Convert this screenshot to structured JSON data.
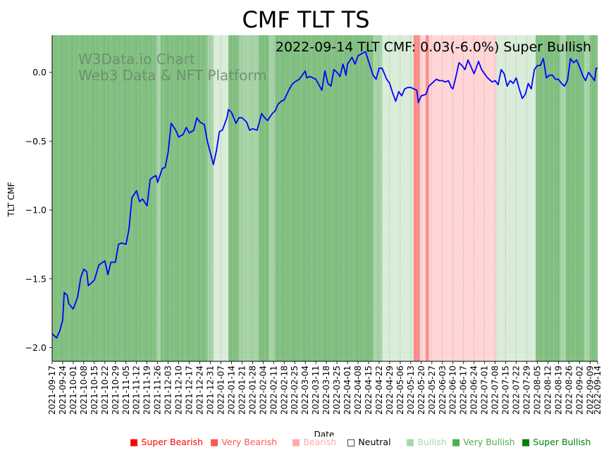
{
  "chart_data": {
    "type": "line",
    "title": "CMF TLT TS",
    "annotation": "2022-09-14 TLT CMF: 0.03(-6.0%) Super Bullish",
    "watermark": [
      "W3Data.io Chart",
      "Web3 Data & NFT Platform"
    ],
    "xlabel": "Date",
    "ylabel": "TLT CMF",
    "ylim": [
      -2.1,
      0.27
    ],
    "yticks": [
      0.0,
      -0.5,
      -1.0,
      -1.5,
      -2.0
    ],
    "ytick_labels": [
      "0.0",
      "−0.5",
      "−1.0",
      "−1.5",
      "−2.0"
    ],
    "x_start": "2021-09-17",
    "x_end": "2022-09-14",
    "xtick_labels": [
      "2021-09-17",
      "2021-09-24",
      "2021-10-01",
      "2021-10-08",
      "2021-10-15",
      "2021-10-22",
      "2021-10-29",
      "2021-11-05",
      "2021-11-12",
      "2021-11-19",
      "2021-11-26",
      "2021-12-03",
      "2021-12-10",
      "2021-12-17",
      "2021-12-24",
      "2021-12-31",
      "2022-01-07",
      "2022-01-14",
      "2022-01-21",
      "2022-01-28",
      "2022-02-04",
      "2022-02-11",
      "2022-02-18",
      "2022-02-25",
      "2022-03-04",
      "2022-03-11",
      "2022-03-18",
      "2022-03-25",
      "2022-04-01",
      "2022-04-08",
      "2022-04-15",
      "2022-04-22",
      "2022-04-29",
      "2022-05-06",
      "2022-05-13",
      "2022-05-20",
      "2022-05-27",
      "2022-06-03",
      "2022-06-10",
      "2022-06-17",
      "2022-06-24",
      "2022-07-01",
      "2022-07-08",
      "2022-07-15",
      "2022-07-22",
      "2022-07-29",
      "2022-08-05",
      "2022-08-12",
      "2022-08-19",
      "2022-08-26",
      "2022-09-02",
      "2022-09-09",
      "2022-09-14"
    ],
    "line_color": "#0000ff",
    "series": [
      {
        "name": "TLT CMF",
        "points": [
          [
            "2021-09-17",
            -1.9
          ],
          [
            "2021-09-20",
            -1.93
          ],
          [
            "2021-09-22",
            -1.88
          ],
          [
            "2021-09-24",
            -1.8
          ],
          [
            "2021-09-25",
            -1.6
          ],
          [
            "2021-09-27",
            -1.62
          ],
          [
            "2021-09-28",
            -1.68
          ],
          [
            "2021-10-01",
            -1.72
          ],
          [
            "2021-10-04",
            -1.63
          ],
          [
            "2021-10-06",
            -1.49
          ],
          [
            "2021-10-08",
            -1.43
          ],
          [
            "2021-10-10",
            -1.45
          ],
          [
            "2021-10-11",
            -1.55
          ],
          [
            "2021-10-15",
            -1.51
          ],
          [
            "2021-10-18",
            -1.4
          ],
          [
            "2021-10-22",
            -1.37
          ],
          [
            "2021-10-24",
            -1.47
          ],
          [
            "2021-10-26",
            -1.38
          ],
          [
            "2021-10-29",
            -1.38
          ],
          [
            "2021-10-31",
            -1.25
          ],
          [
            "2021-11-02",
            -1.24
          ],
          [
            "2021-11-05",
            -1.25
          ],
          [
            "2021-11-07",
            -1.14
          ],
          [
            "2021-11-09",
            -0.91
          ],
          [
            "2021-11-12",
            -0.86
          ],
          [
            "2021-11-14",
            -0.94
          ],
          [
            "2021-11-16",
            -0.92
          ],
          [
            "2021-11-19",
            -0.97
          ],
          [
            "2021-11-21",
            -0.78
          ],
          [
            "2021-11-23",
            -0.76
          ],
          [
            "2021-11-25",
            -0.75
          ],
          [
            "2021-11-26",
            -0.8
          ],
          [
            "2021-11-29",
            -0.7
          ],
          [
            "2021-12-01",
            -0.69
          ],
          [
            "2021-12-03",
            -0.58
          ],
          [
            "2021-12-05",
            -0.37
          ],
          [
            "2021-12-08",
            -0.42
          ],
          [
            "2021-12-10",
            -0.47
          ],
          [
            "2021-12-13",
            -0.45
          ],
          [
            "2021-12-15",
            -0.4
          ],
          [
            "2021-12-17",
            -0.44
          ],
          [
            "2021-12-20",
            -0.42
          ],
          [
            "2021-12-22",
            -0.33
          ],
          [
            "2021-12-24",
            -0.36
          ],
          [
            "2021-12-27",
            -0.38
          ],
          [
            "2021-12-29",
            -0.5
          ],
          [
            "2022-01-02",
            -0.67
          ],
          [
            "2022-01-04",
            -0.57
          ],
          [
            "2022-01-06",
            -0.43
          ],
          [
            "2022-01-08",
            -0.42
          ],
          [
            "2022-01-11",
            -0.33
          ],
          [
            "2022-01-12",
            -0.27
          ],
          [
            "2022-01-14",
            -0.29
          ],
          [
            "2022-01-17",
            -0.37
          ],
          [
            "2022-01-19",
            -0.33
          ],
          [
            "2022-01-21",
            -0.33
          ],
          [
            "2022-01-24",
            -0.36
          ],
          [
            "2022-01-26",
            -0.42
          ],
          [
            "2022-01-28",
            -0.41
          ],
          [
            "2022-01-31",
            -0.42
          ],
          [
            "2022-02-02",
            -0.34
          ],
          [
            "2022-02-03",
            -0.3
          ],
          [
            "2022-02-05",
            -0.33
          ],
          [
            "2022-02-07",
            -0.35
          ],
          [
            "2022-02-10",
            -0.3
          ],
          [
            "2022-02-12",
            -0.28
          ],
          [
            "2022-02-14",
            -0.23
          ],
          [
            "2022-02-16",
            -0.21
          ],
          [
            "2022-02-18",
            -0.2
          ],
          [
            "2022-02-21",
            -0.13
          ],
          [
            "2022-02-23",
            -0.09
          ],
          [
            "2022-02-25",
            -0.07
          ],
          [
            "2022-02-28",
            -0.05
          ],
          [
            "2022-03-02",
            -0.02
          ],
          [
            "2022-03-04",
            0.01
          ],
          [
            "2022-03-05",
            -0.04
          ],
          [
            "2022-03-07",
            -0.03
          ],
          [
            "2022-03-09",
            -0.04
          ],
          [
            "2022-03-11",
            -0.05
          ],
          [
            "2022-03-14",
            -0.11
          ],
          [
            "2022-03-15",
            -0.13
          ],
          [
            "2022-03-17",
            0.01
          ],
          [
            "2022-03-19",
            -0.08
          ],
          [
            "2022-03-21",
            -0.1
          ],
          [
            "2022-03-23",
            0.02
          ],
          [
            "2022-03-25",
            0.0
          ],
          [
            "2022-03-27",
            -0.03
          ],
          [
            "2022-03-29",
            0.06
          ],
          [
            "2022-03-31",
            -0.02
          ],
          [
            "2022-04-01",
            0.06
          ],
          [
            "2022-04-04",
            0.11
          ],
          [
            "2022-04-06",
            0.06
          ],
          [
            "2022-04-08",
            0.12
          ],
          [
            "2022-04-11",
            0.14
          ],
          [
            "2022-04-13",
            0.15
          ],
          [
            "2022-04-15",
            0.08
          ],
          [
            "2022-04-18",
            -0.02
          ],
          [
            "2022-04-20",
            -0.05
          ],
          [
            "2022-04-22",
            0.03
          ],
          [
            "2022-04-24",
            0.03
          ],
          [
            "2022-04-27",
            -0.05
          ],
          [
            "2022-04-29",
            -0.08
          ],
          [
            "2022-05-01",
            -0.15
          ],
          [
            "2022-05-03",
            -0.21
          ],
          [
            "2022-05-05",
            -0.14
          ],
          [
            "2022-05-07",
            -0.17
          ],
          [
            "2022-05-09",
            -0.12
          ],
          [
            "2022-05-11",
            -0.11
          ],
          [
            "2022-05-13",
            -0.11
          ],
          [
            "2022-05-15",
            -0.12
          ],
          [
            "2022-05-17",
            -0.13
          ],
          [
            "2022-05-18",
            -0.22
          ],
          [
            "2022-05-20",
            -0.17
          ],
          [
            "2022-05-23",
            -0.16
          ],
          [
            "2022-05-25",
            -0.1
          ],
          [
            "2022-05-27",
            -0.08
          ],
          [
            "2022-05-30",
            -0.05
          ],
          [
            "2022-06-01",
            -0.06
          ],
          [
            "2022-06-03",
            -0.06
          ],
          [
            "2022-06-05",
            -0.07
          ],
          [
            "2022-06-07",
            -0.06
          ],
          [
            "2022-06-09",
            -0.11
          ],
          [
            "2022-06-10",
            -0.12
          ],
          [
            "2022-06-12",
            -0.03
          ],
          [
            "2022-06-14",
            0.07
          ],
          [
            "2022-06-16",
            0.05
          ],
          [
            "2022-06-18",
            0.02
          ],
          [
            "2022-06-20",
            0.09
          ],
          [
            "2022-06-22",
            0.04
          ],
          [
            "2022-06-24",
            -0.01
          ],
          [
            "2022-06-27",
            0.08
          ],
          [
            "2022-06-29",
            0.02
          ],
          [
            "2022-07-01",
            -0.01
          ],
          [
            "2022-07-03",
            -0.04
          ],
          [
            "2022-07-06",
            -0.07
          ],
          [
            "2022-07-08",
            -0.06
          ],
          [
            "2022-07-10",
            -0.09
          ],
          [
            "2022-07-12",
            0.02
          ],
          [
            "2022-07-14",
            -0.01
          ],
          [
            "2022-07-16",
            -0.1
          ],
          [
            "2022-07-18",
            -0.06
          ],
          [
            "2022-07-20",
            -0.08
          ],
          [
            "2022-07-22",
            -0.04
          ],
          [
            "2022-07-24",
            -0.12
          ],
          [
            "2022-07-26",
            -0.19
          ],
          [
            "2022-07-28",
            -0.16
          ],
          [
            "2022-07-30",
            -0.08
          ],
          [
            "2022-08-01",
            -0.12
          ],
          [
            "2022-08-03",
            0.02
          ],
          [
            "2022-08-05",
            0.05
          ],
          [
            "2022-08-07",
            0.05
          ],
          [
            "2022-08-09",
            0.1
          ],
          [
            "2022-08-11",
            -0.04
          ],
          [
            "2022-08-13",
            -0.02
          ],
          [
            "2022-08-15",
            -0.02
          ],
          [
            "2022-08-17",
            -0.05
          ],
          [
            "2022-08-19",
            -0.05
          ],
          [
            "2022-08-21",
            -0.08
          ],
          [
            "2022-08-23",
            -0.1
          ],
          [
            "2022-08-25",
            -0.06
          ],
          [
            "2022-08-27",
            0.1
          ],
          [
            "2022-08-29",
            0.07
          ],
          [
            "2022-08-31",
            0.09
          ],
          [
            "2022-09-02",
            0.04
          ],
          [
            "2022-09-04",
            -0.02
          ],
          [
            "2022-09-06",
            -0.06
          ],
          [
            "2022-09-08",
            0.0
          ],
          [
            "2022-09-10",
            -0.03
          ],
          [
            "2022-09-12",
            -0.06
          ],
          [
            "2022-09-13",
            0.03
          ],
          [
            "2022-09-14",
            0.03
          ]
        ]
      }
    ],
    "background_regimes": [
      [
        "2021-09-17",
        "2021-11-25",
        "Very Bullish"
      ],
      [
        "2021-11-25",
        "2021-11-28",
        "Bullish"
      ],
      [
        "2021-11-28",
        "2021-12-29",
        "Very Bullish"
      ],
      [
        "2021-12-29",
        "2022-01-02",
        "Bullish"
      ],
      [
        "2022-01-02",
        "2022-01-12",
        "Neutral"
      ],
      [
        "2022-01-12",
        "2022-01-19",
        "Very Bullish"
      ],
      [
        "2022-01-19",
        "2022-02-01",
        "Bullish"
      ],
      [
        "2022-02-01",
        "2022-02-08",
        "Very Bullish"
      ],
      [
        "2022-02-08",
        "2022-02-12",
        "Bullish"
      ],
      [
        "2022-02-12",
        "2022-04-18",
        "Very Bullish"
      ],
      [
        "2022-04-18",
        "2022-04-24",
        "Bullish"
      ],
      [
        "2022-04-24",
        "2022-05-15",
        "Neutral"
      ],
      [
        "2022-05-15",
        "2022-05-19",
        "Very Bearish"
      ],
      [
        "2022-05-19",
        "2022-05-23",
        "Bearish"
      ],
      [
        "2022-05-23",
        "2022-05-25",
        "Very Bearish"
      ],
      [
        "2022-05-25",
        "2022-07-09",
        "Bearish"
      ],
      [
        "2022-07-09",
        "2022-08-04",
        "Neutral"
      ],
      [
        "2022-08-04",
        "2022-08-20",
        "Very Bullish"
      ],
      [
        "2022-08-20",
        "2022-08-24",
        "Bullish"
      ],
      [
        "2022-08-24",
        "2022-09-05",
        "Very Bullish"
      ],
      [
        "2022-09-05",
        "2022-09-09",
        "Bullish"
      ],
      [
        "2022-09-09",
        "2022-09-14",
        "Very Bullish"
      ]
    ],
    "legend": [
      {
        "label": "Super Bearish",
        "color": "#ff0000",
        "swatch": "■"
      },
      {
        "label": "Very Bearish",
        "color": "#ff5555",
        "swatch": "■"
      },
      {
        "label": "Bearish",
        "color": "#ffaaaa",
        "swatch": "■"
      },
      {
        "label": "Neutral",
        "color": "#000000",
        "swatch": "□"
      },
      {
        "label": "Bullish",
        "color": "#a8d8a8",
        "swatch": "■"
      },
      {
        "label": "Very Bullish",
        "color": "#4caf50",
        "swatch": "■"
      },
      {
        "label": "Super Bullish",
        "color": "#008000",
        "swatch": "■"
      }
    ],
    "legend_placement": "bottom",
    "regime_fill_colors": {
      "Super Bearish": "#ff0000",
      "Very Bearish": "#ff8888",
      "Bearish": "#ffd5d5",
      "Neutral": "#d8ecd8",
      "Bullish": "#a6d3a6",
      "Very Bullish": "#80bf80",
      "Super Bullish": "#3a9a3a"
    }
  }
}
